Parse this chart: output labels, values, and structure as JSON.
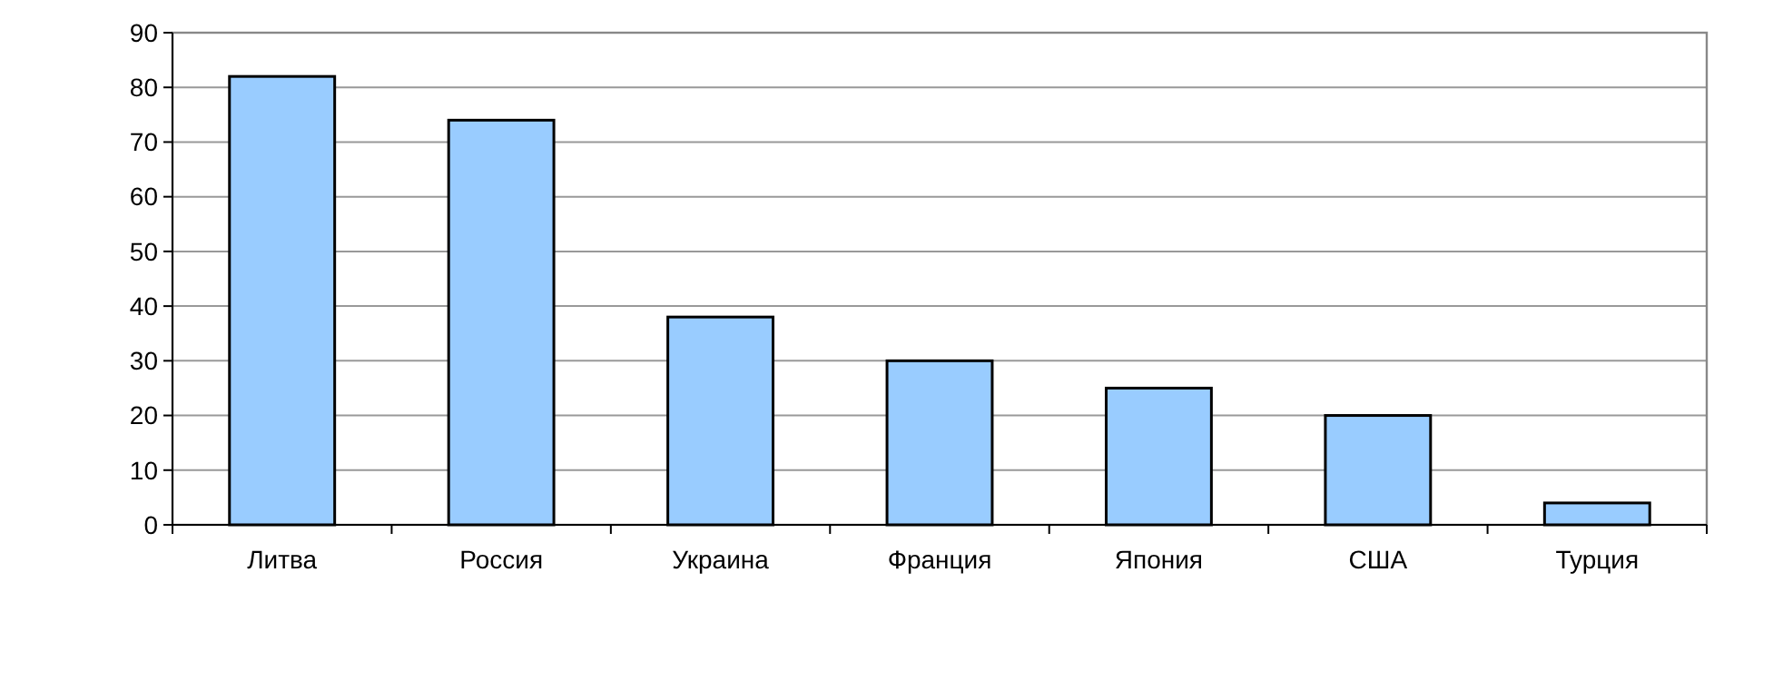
{
  "chart_data": {
    "type": "bar",
    "categories": [
      "Литва",
      "Россия",
      "Украина",
      "Франция",
      "Япония",
      "США",
      "Турция"
    ],
    "values": [
      82,
      74,
      38,
      30,
      25,
      20,
      4
    ],
    "color": "#99ccff",
    "ylim": [
      0,
      90
    ],
    "yticks": [
      0,
      10,
      20,
      30,
      40,
      50,
      60,
      70,
      80,
      90
    ],
    "grid": "y"
  }
}
